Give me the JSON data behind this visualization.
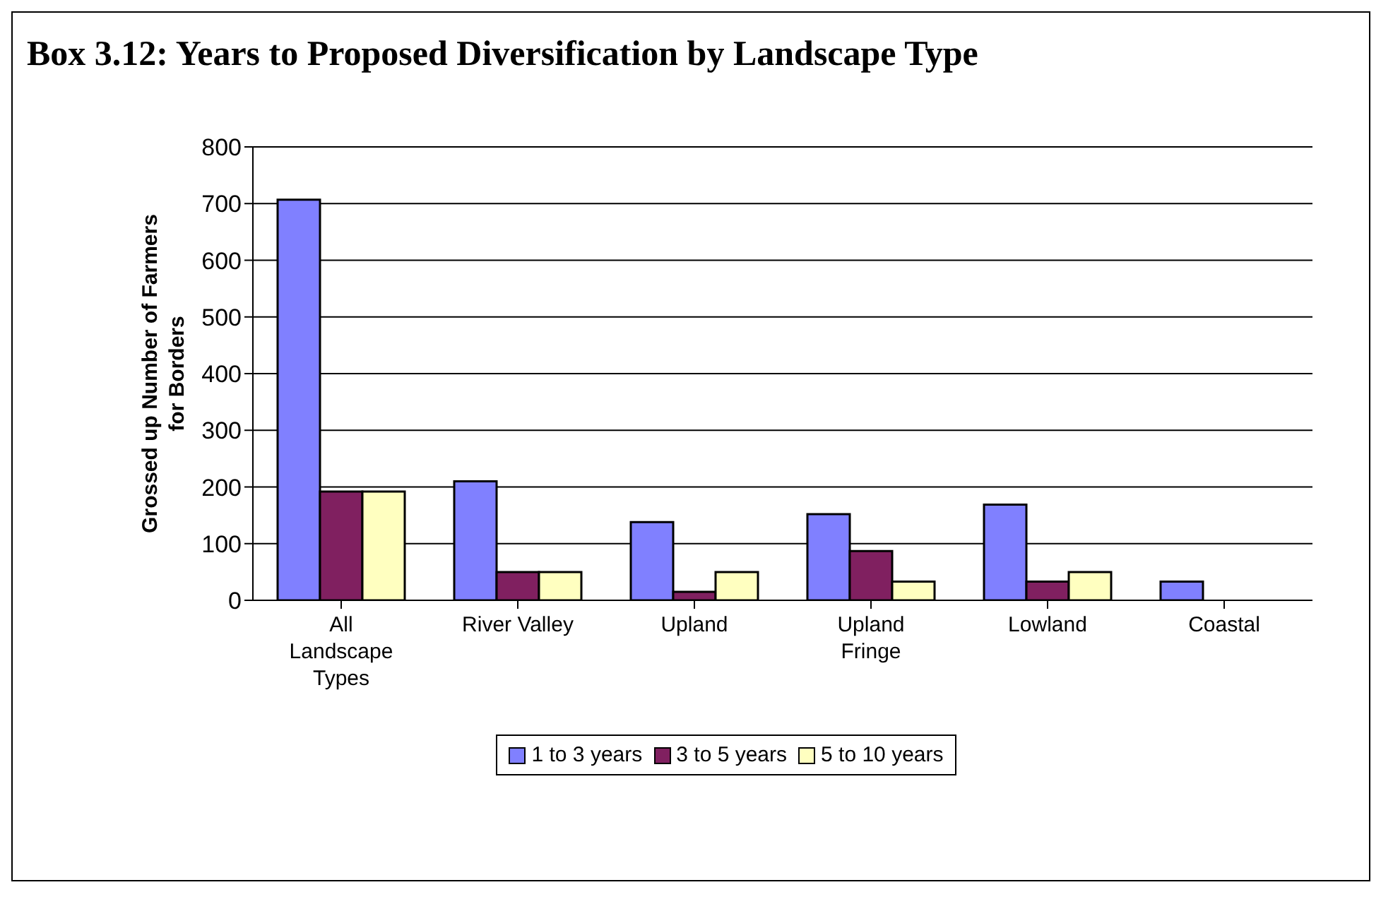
{
  "chart_data": {
    "type": "bar",
    "title": "Box 3.12: Years to Proposed Diversification by Landscape Type",
    "ylabel": "Grossed up Number of Farmers for Borders",
    "categories": [
      "All Landscape Types",
      "River Valley",
      "Upland",
      "Upland Fringe",
      "Lowland",
      "Coastal"
    ],
    "series": [
      {
        "name": "1 to 3 years",
        "color": "#8080ff",
        "values": [
          707,
          210,
          138,
          152,
          169,
          33
        ]
      },
      {
        "name": "3 to 5 years",
        "color": "#802060",
        "values": [
          192,
          50,
          15,
          87,
          33,
          null
        ]
      },
      {
        "name": "5 to 10 years",
        "color": "#ffffc0",
        "values": [
          192,
          50,
          50,
          33,
          50,
          null
        ]
      }
    ],
    "ylim": [
      0,
      800
    ],
    "yticks": [
      0,
      100,
      200,
      300,
      400,
      500,
      600,
      700,
      800
    ],
    "grid": "y",
    "legend": "bottom"
  }
}
